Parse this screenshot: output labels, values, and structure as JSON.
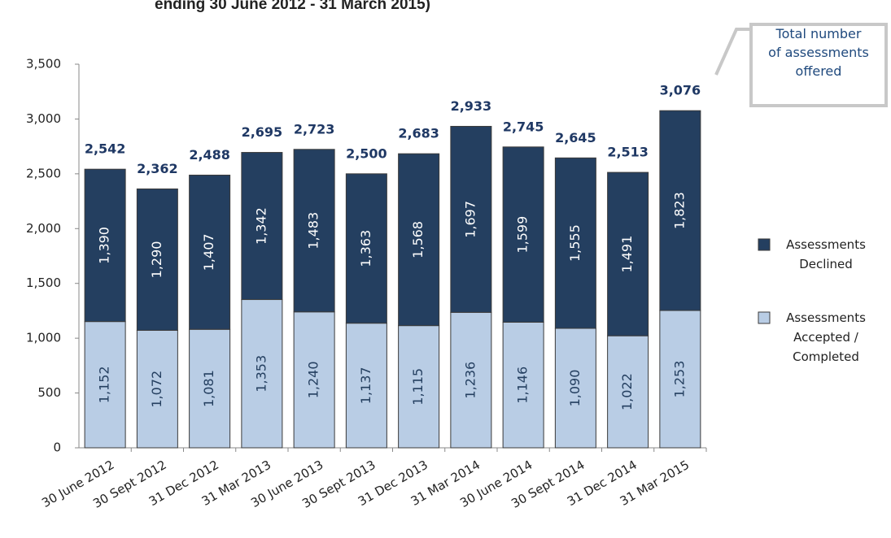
{
  "chart_data": {
    "type": "stacked_bar",
    "title": "ending 30 June 2012 - 31 March 2015)",
    "annotation": "Total number of assessments offered",
    "categories": [
      "30 June 2012",
      "30 Sept 2012",
      "31 Dec 2012",
      "31 Mar 2013",
      "30 June 2013",
      "30 Sept 2013",
      "31 Dec 2013",
      "31 Mar 2014",
      "30 June 2014",
      "30 Sept 2014",
      "31 Dec 2014",
      "31 Mar 2015"
    ],
    "series": [
      {
        "name": "Assessments Accepted / Completed",
        "color": "#b9cde5",
        "values": [
          1152,
          1072,
          1081,
          1353,
          1240,
          1137,
          1115,
          1236,
          1146,
          1090,
          1022,
          1253
        ],
        "value_labels": [
          "1,152",
          "1,072",
          "1,081",
          "1,353",
          "1,240",
          "1,137",
          "1,115",
          "1,236",
          "1,146",
          "1,090",
          "1,022",
          "1,253"
        ]
      },
      {
        "name": "Assessments Declined",
        "color": "#243f60",
        "values": [
          1390,
          1290,
          1407,
          1342,
          1483,
          1363,
          1568,
          1697,
          1599,
          1555,
          1491,
          1823
        ],
        "value_labels": [
          "1,390",
          "1,290",
          "1,407",
          "1,342",
          "1,483",
          "1,363",
          "1,568",
          "1,697",
          "1,599",
          "1,555",
          "1,491",
          "1,823"
        ]
      }
    ],
    "totals": [
      2542,
      2362,
      2488,
      2695,
      2723,
      2500,
      2683,
      2933,
      2745,
      2645,
      2513,
      3076
    ],
    "totals_labels": [
      "2,542",
      "2,362",
      "2,488",
      "2,695",
      "2,723",
      "2,500",
      "2,683",
      "2,933",
      "2,745",
      "2,645",
      "2,513",
      "3,076"
    ],
    "ylim": [
      0,
      3500
    ],
    "yticks": [
      0,
      500,
      {
        "value": 1000,
        "label": "1,000"
      },
      {
        "value": 1500,
        "label": "1,500"
      },
      {
        "value": 2000,
        "label": "2,000"
      },
      {
        "value": 2500,
        "label": "2,500"
      },
      {
        "value": 3000,
        "label": "3,000"
      },
      {
        "value": 3500,
        "label": "3,500"
      }
    ],
    "legend": "right"
  }
}
